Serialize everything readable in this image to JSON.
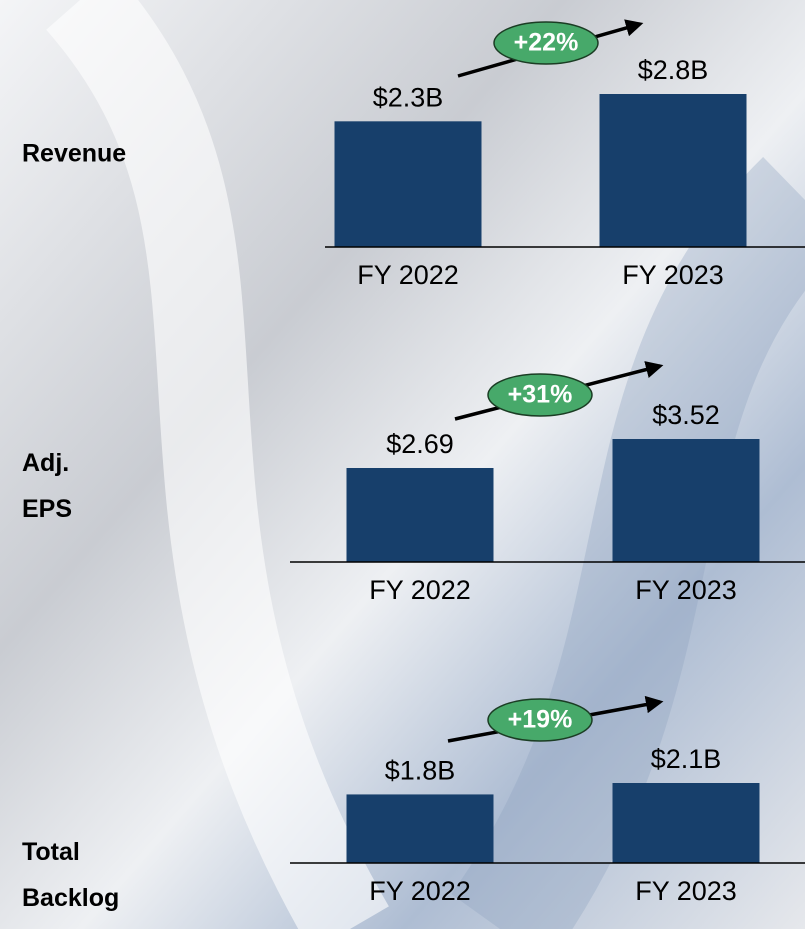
{
  "chart_data": [
    {
      "type": "bar",
      "title": "Revenue",
      "categories": [
        "FY 2022",
        "FY 2023"
      ],
      "values": [
        2.3,
        2.8
      ],
      "value_labels": [
        "$2.3B",
        "$2.8B"
      ],
      "annotation": "+22%",
      "color": "#173f6b"
    },
    {
      "type": "bar",
      "title": "Adj. EPS",
      "categories": [
        "FY 2022",
        "FY 2023"
      ],
      "values": [
        2.69,
        3.52
      ],
      "value_labels": [
        "$2.69",
        "$3.52"
      ],
      "annotation": "+31%",
      "color": "#173f6b"
    },
    {
      "type": "bar",
      "title": "Total Backlog",
      "categories": [
        "FY 2022",
        "FY 2023"
      ],
      "values": [
        1.8,
        2.1
      ],
      "value_labels": [
        "$1.8B",
        "$2.1B"
      ],
      "annotation": "+19%",
      "color": "#173f6b"
    }
  ]
}
